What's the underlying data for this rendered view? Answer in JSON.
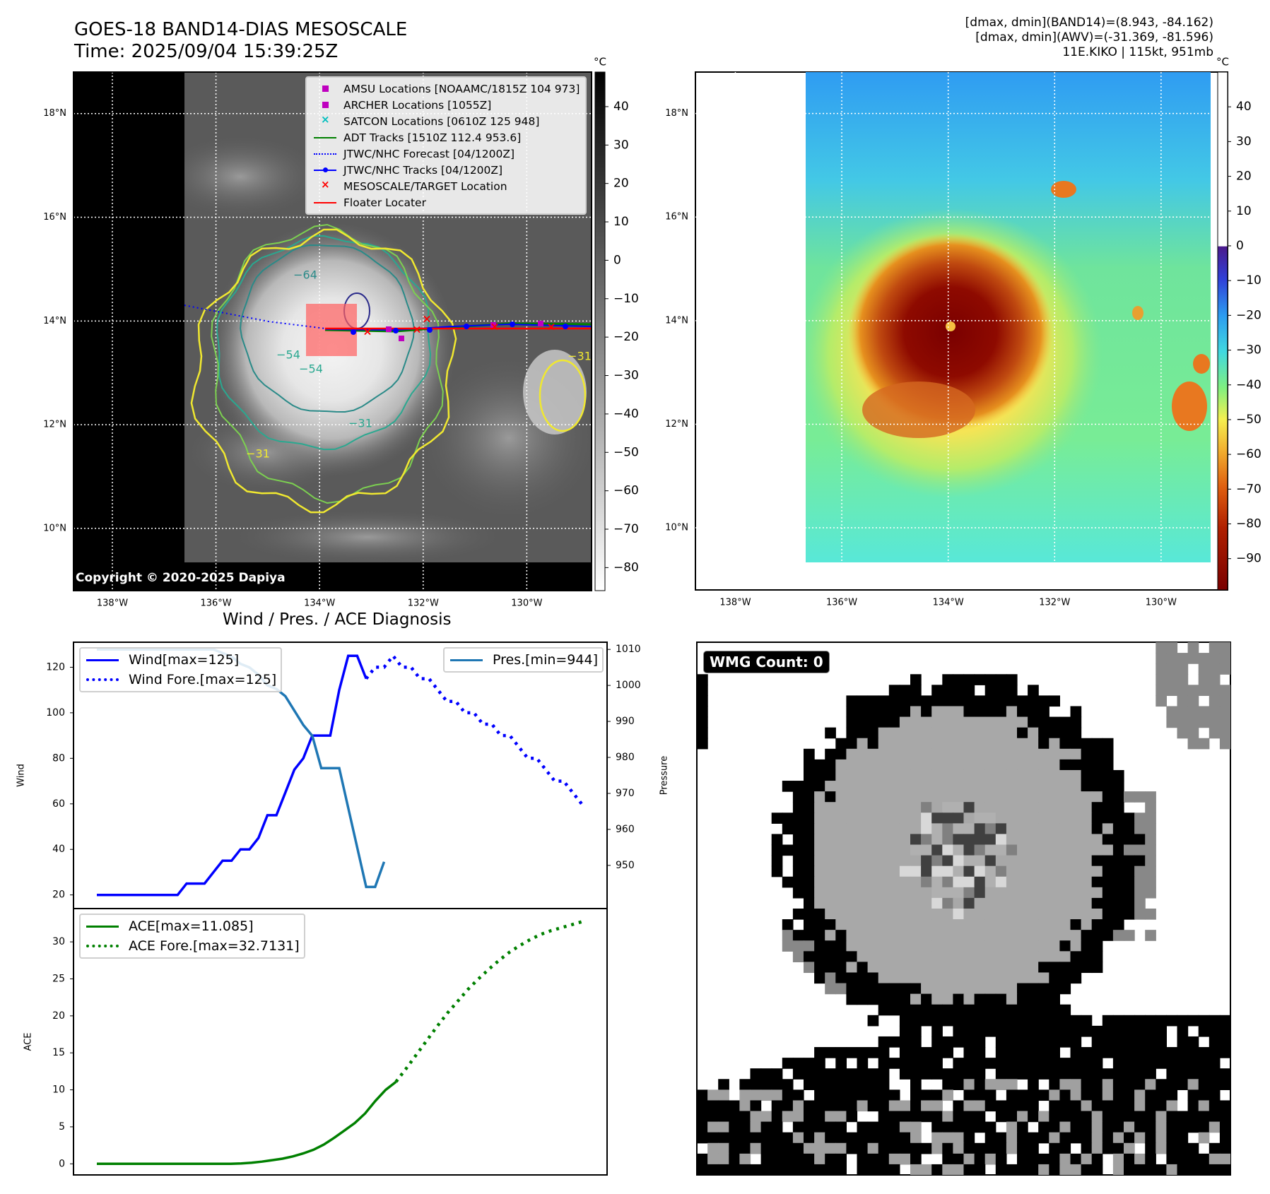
{
  "header": {
    "title_line1": "GOES-18 BAND14-DIAS MESOSCALE",
    "title_line2": "Time: 2025/09/04 15:39:25Z",
    "info_line1": "[dmax, dmin](BAND14)=(8.943, -84.162)",
    "info_line2": "[dmax, dmin](AWV)=(-31.369, -81.596)",
    "info_line3": "11E.KIKO | 115kt, 951mb"
  },
  "map_axes": {
    "lat_labels": [
      "18°N",
      "16°N",
      "14°N",
      "12°N",
      "10°N"
    ],
    "lat_values": [
      18,
      16,
      14,
      12,
      10
    ],
    "lon_labels": [
      "138°W",
      "136°W",
      "134°W",
      "132°W",
      "130°W"
    ],
    "lon_values": [
      -138,
      -136,
      -134,
      -132,
      -130
    ],
    "lat_range": [
      8.8,
      18.8
    ],
    "lon_range": [
      -138.75,
      -128.75
    ]
  },
  "ir_colorbar": {
    "unit": "°C",
    "ticks": [
      "40",
      "30",
      "20",
      "10",
      "0",
      "−10",
      "−20",
      "−30",
      "−40",
      "−50",
      "−60",
      "−70",
      "−80"
    ],
    "tick_values": [
      40,
      30,
      20,
      10,
      0,
      -10,
      -20,
      -30,
      -40,
      -50,
      -60,
      -70,
      -80
    ],
    "range": [
      -86,
      49
    ]
  },
  "wv_colorbar": {
    "unit": "°C",
    "ticks": [
      "40",
      "30",
      "20",
      "10",
      "0",
      "−10",
      "−20",
      "−30",
      "−40",
      "−50",
      "−60",
      "−70",
      "−80",
      "−90"
    ],
    "tick_values": [
      40,
      30,
      20,
      10,
      0,
      -10,
      -20,
      -30,
      -40,
      -50,
      -60,
      -70,
      -80,
      -90
    ],
    "range": [
      -99,
      50
    ]
  },
  "legend": {
    "amsu": "AMSU Locations [NOAAMC/1815Z 104 973]",
    "archer": "ARCHER Locations [1055Z]",
    "satcon": "SATCON Locations [0610Z 125 948]",
    "adt": "ADT Tracks [1510Z 112.4 953.6]",
    "jtwc_forecast": "JTWC/NHC Forecast [04/1200Z]",
    "jtwc_tracks": "JTWC/NHC Tracks [04/1200Z]",
    "mesoscale": "MESOSCALE/TARGET Location",
    "floater": "Floater Locater"
  },
  "contour_labels": [
    "−64",
    "−54",
    "−54",
    "−31",
    "−31",
    "−31"
  ],
  "copyright": "Copyright © 2020-2025 Dapiya",
  "diagnosis_title": "Wind / Pres. / ACE Diagnosis",
  "wmg_label": "WMG Count: 0",
  "colors": {
    "wind": "#0000ff",
    "pressure": "#1f77b4",
    "ace": "#008000",
    "adt": "#008000",
    "amsu": "#bf00bf",
    "satcon": "#00bfbf",
    "mesoscale": "#ff0000"
  },
  "chart_data": [
    {
      "type": "line",
      "title": "Wind / Pres. / ACE Diagnosis",
      "ylabel": "Wind",
      "ylabel_right": "Pressure",
      "ylim": [
        14,
        131
      ],
      "ylim_right": [
        938,
        1012
      ],
      "yticks": [
        20,
        40,
        60,
        80,
        100,
        120
      ],
      "yticks_right": [
        950,
        960,
        970,
        980,
        990,
        1000,
        1010
      ],
      "series": [
        {
          "name": "Wind[max=125]",
          "style": "solid",
          "values": [
            20,
            20,
            20,
            20,
            20,
            20,
            20,
            20,
            20,
            20,
            25,
            25,
            25,
            30,
            35,
            35,
            40,
            40,
            45,
            55,
            55,
            65,
            75,
            80,
            90,
            90,
            90,
            110,
            125,
            125,
            115
          ]
        },
        {
          "name": "Wind Fore.[max=125]",
          "style": "dotted",
          "start_index": 30,
          "values": [
            115,
            120,
            120,
            125,
            120,
            120,
            115,
            115,
            110,
            105,
            105,
            100,
            100,
            95,
            95,
            90,
            90,
            85,
            80,
            80,
            75,
            70,
            70,
            65,
            60
          ]
        },
        {
          "name": "Pres.[min=944]",
          "style": "solid",
          "axis": "right",
          "values": [
            1010,
            1010,
            1010,
            1010,
            1010,
            1010,
            1010,
            1010,
            1010,
            1010,
            1010,
            1010,
            1010,
            1010,
            1009,
            1008,
            1006,
            1005,
            1003,
            1000,
            999,
            997,
            993,
            989,
            986,
            977,
            977,
            977,
            966,
            955,
            944,
            944,
            951
          ]
        }
      ]
    },
    {
      "type": "line",
      "ylabel": "ACE",
      "ylim": [
        -1.5,
        34.5
      ],
      "yticks": [
        0,
        5,
        10,
        15,
        20,
        25,
        30
      ],
      "series": [
        {
          "name": "ACE[max=11.085]",
          "style": "solid",
          "values": [
            0,
            0,
            0,
            0,
            0,
            0,
            0,
            0,
            0,
            0,
            0,
            0,
            0,
            0,
            0.05,
            0.15,
            0.3,
            0.5,
            0.7,
            1.0,
            1.4,
            1.9,
            2.6,
            3.5,
            4.5,
            5.5,
            6.8,
            8.5,
            10.0,
            11.085
          ]
        },
        {
          "name": "ACE Fore.[max=32.7131]",
          "style": "dotted",
          "start_index": 29,
          "values": [
            11.085,
            12.9,
            14.8,
            16.7,
            18.6,
            20.4,
            22.0,
            23.6,
            25.0,
            26.3,
            27.5,
            28.6,
            29.5,
            30.3,
            31.0,
            31.5,
            31.9,
            32.3,
            32.7131
          ]
        }
      ]
    }
  ]
}
